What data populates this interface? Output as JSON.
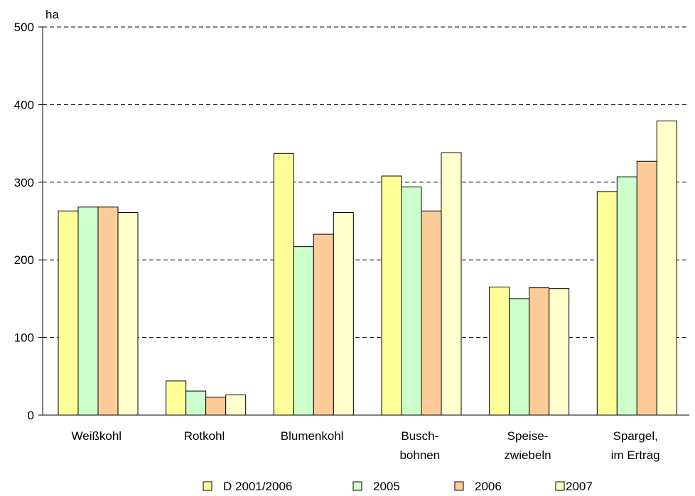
{
  "chart_data": {
    "type": "bar",
    "ylabel": "ha",
    "ylim": [
      0,
      500
    ],
    "yticks": [
      0,
      100,
      200,
      300,
      400,
      500
    ],
    "grid": true,
    "legend_position": "bottom",
    "categories": [
      [
        "Weißkohl"
      ],
      [
        "Rotkohl"
      ],
      [
        "Blumenkohl"
      ],
      [
        "Busch-",
        "bohnen"
      ],
      [
        "Speise-",
        "zwiebeln"
      ],
      [
        "Spargel,",
        "im Ertrag"
      ]
    ],
    "series": [
      {
        "name": "D 2001/2006",
        "color": "#ffff99",
        "values": [
          263,
          44,
          337,
          308,
          165,
          288
        ]
      },
      {
        "name": "2005",
        "color": "#ccffcc",
        "values": [
          268,
          31,
          217,
          294,
          150,
          307
        ]
      },
      {
        "name": "2006",
        "color": "#ffcc99",
        "values": [
          268,
          23,
          233,
          263,
          164,
          327
        ]
      },
      {
        "name": "2007",
        "color": "#ffffcc",
        "values": [
          261,
          26,
          261,
          338,
          163,
          379
        ]
      }
    ]
  }
}
